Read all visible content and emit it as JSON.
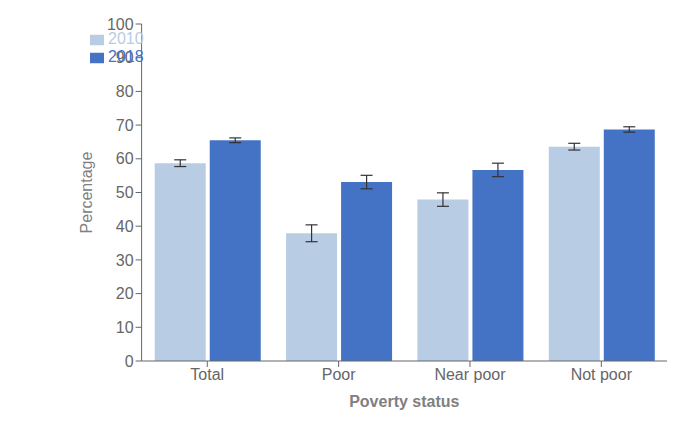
{
  "chart_data": {
    "type": "bar",
    "categories": [
      "Total",
      "Poor",
      "Near poor",
      "Not poor"
    ],
    "series": [
      {
        "name": "2010",
        "color": "#b8cce4",
        "values": [
          58.7,
          37.9,
          47.9,
          63.6
        ],
        "errors": [
          1.0,
          2.5,
          2.0,
          1.0
        ]
      },
      {
        "name": "2018",
        "color": "#4472c4",
        "values": [
          65.5,
          53.1,
          56.7,
          68.7
        ],
        "errors": [
          0.7,
          2.0,
          2.0,
          0.8
        ]
      }
    ],
    "xlabel": "Poverty status",
    "ylabel": "Percentage",
    "ylim": [
      0,
      100
    ],
    "yticks": [
      0,
      10,
      20,
      30,
      40,
      50,
      60,
      70,
      80,
      90,
      100
    ],
    "legend": "upper left",
    "grid": false
  }
}
